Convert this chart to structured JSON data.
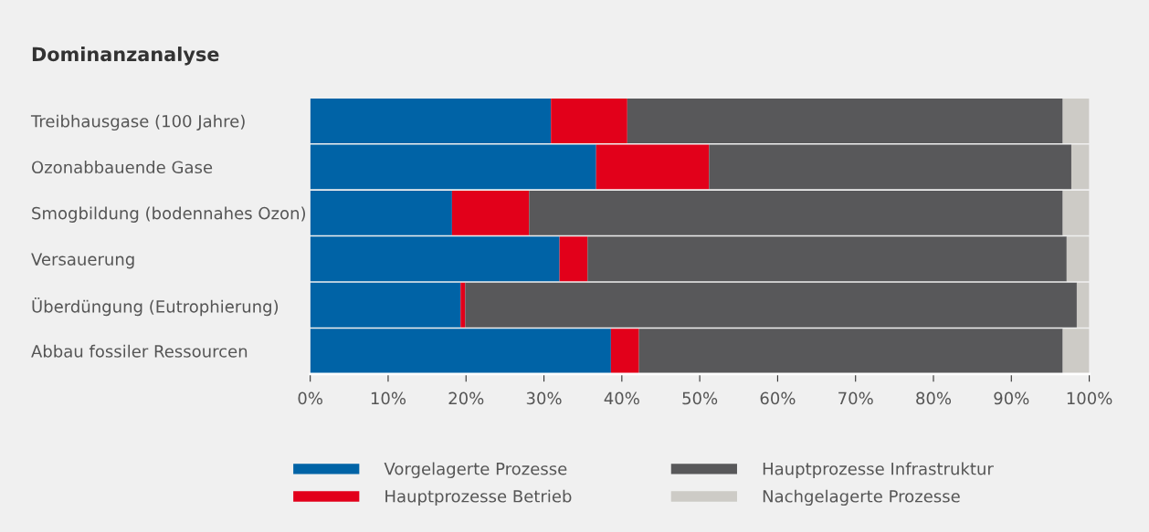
{
  "chart_data": {
    "type": "bar",
    "orientation": "horizontal",
    "stacked": true,
    "title": "Dominanzanalyse",
    "categories": [
      "Treibhausgase (100 Jahre)",
      "Ozonabbauende Gase",
      "Smogbildung (bodennahes Ozon)",
      "Versauerung",
      "Überdüngung (Eutrophierung)",
      "Abbau fossiler Ressourcen"
    ],
    "series": [
      {
        "name": "Vorgelagerte Prozesse",
        "color": "#0063a6",
        "values": [
          30.9,
          36.7,
          18.2,
          32.0,
          19.3,
          38.6
        ]
      },
      {
        "name": "Hauptprozesse Betrieb",
        "color": "#e2001a",
        "values": [
          9.8,
          14.5,
          9.9,
          3.6,
          0.6,
          3.6
        ]
      },
      {
        "name": "Hauptprozesse Infrastruktur",
        "color": "#58585a",
        "values": [
          55.9,
          46.5,
          68.5,
          61.5,
          78.5,
          54.4
        ]
      },
      {
        "name": "Nachgelagerte Prozesse",
        "color": "#cdcbc6",
        "values": [
          3.4,
          2.3,
          3.4,
          2.9,
          1.6,
          3.4
        ]
      }
    ],
    "xlim": [
      0,
      100
    ],
    "xticks": [
      {
        "value": 0,
        "label": "0%"
      },
      {
        "value": 10,
        "label": "10%"
      },
      {
        "value": 20,
        "label": "20%"
      },
      {
        "value": 30,
        "label": "30%"
      },
      {
        "value": 40,
        "label": "40%"
      },
      {
        "value": 50,
        "label": "50%"
      },
      {
        "value": 60,
        "label": "60%"
      },
      {
        "value": 70,
        "label": "70%"
      },
      {
        "value": 80,
        "label": "80%"
      },
      {
        "value": 90,
        "label": "90%"
      },
      {
        "value": 100,
        "label": "100%"
      }
    ],
    "grid": false,
    "legend": "bottom"
  }
}
